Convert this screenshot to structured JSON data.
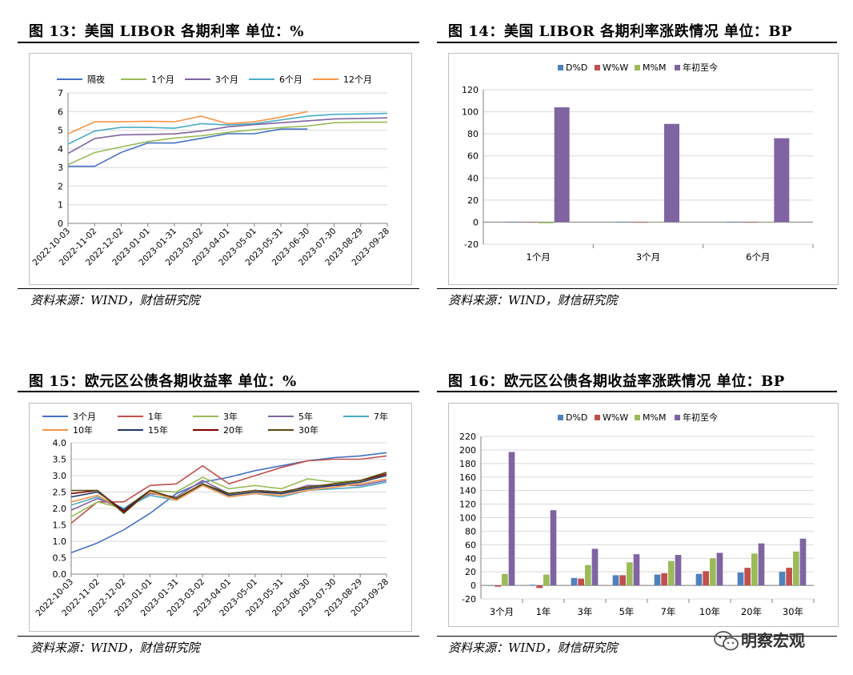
{
  "colors": {
    "s1": "#4472c4",
    "s2": "#c0504d",
    "s3": "#9bbb59",
    "s4": "#8064a2",
    "s5": "#4bacc6",
    "s6": "#f79646",
    "s7": "#1f3864",
    "s8": "#7f0000",
    "s9": "#5a4a0f",
    "bar_dd": "#4f81bd",
    "bar_ww": "#c0504d",
    "bar_mm": "#9bbb59",
    "bar_ytd": "#8064a2"
  },
  "panels": [
    {
      "title": "图 13：美国 LIBOR 各期利率  单位：%",
      "source": "资料来源：WIND，财信研究院"
    },
    {
      "title": "图 14：美国 LIBOR 各期利率涨跌情况  单位：BP",
      "source": "资料来源：WIND，财信研究院"
    },
    {
      "title": "图 15：欧元区公债各期收益率  单位：%",
      "source": "资料来源：WIND，财信研究院"
    },
    {
      "title": "图 16：欧元区公债各期收益率涨跌情况  单位：BP",
      "source": "资料来源：WIND，财信研究院"
    }
  ],
  "watermark": {
    "text": "明察宏观",
    "icon": "wechat-icon"
  },
  "chart_data": [
    {
      "type": "line",
      "dates": [
        "2022-10-03",
        "2022-11-02",
        "2022-12-02",
        "2023-01-01",
        "2023-01-31",
        "2023-03-02",
        "2023-04-01",
        "2023-05-01",
        "2023-05-31",
        "2023-06-30",
        "2023-07-30",
        "2023-08-29",
        "2023-09-28"
      ],
      "ylim": [
        0,
        7
      ],
      "yticks": [
        0,
        1,
        2,
        3,
        4,
        5,
        6,
        7
      ],
      "series": [
        {
          "name": "隔夜",
          "values": [
            3.06,
            3.06,
            3.81,
            4.31,
            4.31,
            4.56,
            4.81,
            4.81,
            5.06,
            5.06,
            null,
            null,
            null
          ]
        },
        {
          "name": "1个月",
          "values": [
            3.15,
            3.8,
            4.1,
            4.39,
            4.58,
            4.7,
            4.88,
            5.03,
            5.14,
            5.22,
            5.4,
            5.43,
            5.43
          ]
        },
        {
          "name": "3个月",
          "values": [
            3.75,
            4.55,
            4.75,
            4.77,
            4.8,
            4.95,
            5.18,
            5.3,
            5.4,
            5.5,
            5.6,
            5.63,
            5.66
          ]
        },
        {
          "name": "6个月",
          "values": [
            4.25,
            4.95,
            5.15,
            5.15,
            5.1,
            5.35,
            5.28,
            5.35,
            5.55,
            5.75,
            5.85,
            5.87,
            5.9
          ]
        },
        {
          "name": "12个月",
          "values": [
            4.8,
            5.45,
            5.45,
            5.48,
            5.45,
            5.75,
            5.35,
            5.45,
            5.7,
            6.0,
            null,
            null,
            null
          ]
        }
      ]
    },
    {
      "type": "bar",
      "categories": [
        "1个月",
        "3个月",
        "6个月"
      ],
      "ylim": [
        -20,
        120
      ],
      "yticks": [
        -20,
        0,
        20,
        40,
        60,
        80,
        100,
        120
      ],
      "series": [
        {
          "name": "D%D",
          "values": [
            0,
            0,
            0
          ]
        },
        {
          "name": "W%W",
          "values": [
            0,
            0,
            0
          ]
        },
        {
          "name": "M%M",
          "values": [
            -1,
            0,
            0
          ]
        },
        {
          "name": "年初至今",
          "values": [
            104,
            89,
            76
          ]
        }
      ]
    },
    {
      "type": "line",
      "dates": [
        "2022-10-03",
        "2022-11-02",
        "2022-12-02",
        "2023-01-01",
        "2023-01-31",
        "2023-03-02",
        "2023-04-01",
        "2023-05-01",
        "2023-05-31",
        "2023-06-30",
        "2023-07-30",
        "2023-08-29",
        "2023-09-28"
      ],
      "ylim": [
        0,
        4
      ],
      "yticks": [
        "0.0",
        "0.5",
        "1.0",
        "1.5",
        "2.0",
        "2.5",
        "3.0",
        "3.5",
        "4.0"
      ],
      "series": [
        {
          "name": "3个月",
          "values": [
            0.65,
            0.95,
            1.35,
            1.85,
            2.45,
            2.8,
            2.95,
            3.15,
            3.3,
            3.45,
            3.55,
            3.6,
            3.7
          ]
        },
        {
          "name": "1年",
          "values": [
            1.55,
            2.2,
            2.2,
            2.7,
            2.75,
            3.3,
            2.75,
            3.0,
            3.25,
            3.45,
            3.5,
            3.5,
            3.6
          ]
        },
        {
          "name": "3年",
          "values": [
            1.75,
            2.2,
            2.0,
            2.55,
            2.5,
            2.95,
            2.6,
            2.7,
            2.6,
            2.9,
            2.8,
            2.85,
            3.0
          ]
        },
        {
          "name": "5年",
          "values": [
            1.95,
            2.3,
            2.0,
            2.45,
            2.35,
            2.85,
            2.45,
            2.55,
            2.45,
            2.7,
            2.7,
            2.7,
            2.85
          ]
        },
        {
          "name": "7年",
          "values": [
            2.1,
            2.35,
            2.0,
            2.4,
            2.25,
            2.7,
            2.35,
            2.45,
            2.35,
            2.55,
            2.6,
            2.65,
            2.8
          ]
        },
        {
          "name": "10年",
          "values": [
            2.2,
            2.4,
            1.95,
            2.5,
            2.25,
            2.7,
            2.35,
            2.45,
            2.4,
            2.55,
            2.65,
            2.75,
            2.9
          ]
        },
        {
          "name": "15年",
          "values": [
            2.35,
            2.5,
            1.95,
            2.55,
            2.3,
            2.75,
            2.4,
            2.5,
            2.45,
            2.6,
            2.7,
            2.8,
            3.0
          ]
        },
        {
          "name": "20年",
          "values": [
            2.45,
            2.55,
            1.9,
            2.55,
            2.3,
            2.75,
            2.45,
            2.55,
            2.5,
            2.65,
            2.75,
            2.85,
            3.05
          ]
        },
        {
          "name": "30年",
          "values": [
            2.55,
            2.55,
            1.85,
            2.55,
            2.3,
            2.75,
            2.45,
            2.55,
            2.5,
            2.65,
            2.75,
            2.85,
            3.1
          ]
        }
      ]
    },
    {
      "type": "bar",
      "categories": [
        "3个月",
        "1年",
        "3年",
        "5年",
        "7年",
        "10年",
        "20年",
        "30年"
      ],
      "ylim": [
        -20,
        220
      ],
      "yticks": [
        -20,
        0,
        20,
        40,
        60,
        80,
        100,
        120,
        140,
        160,
        180,
        200,
        220
      ],
      "series": [
        {
          "name": "D%D",
          "values": [
            0,
            1,
            11,
            15,
            16,
            17,
            19,
            20
          ]
        },
        {
          "name": "W%W",
          "values": [
            -2,
            -4,
            10,
            15,
            18,
            21,
            26,
            26
          ]
        },
        {
          "name": "M%M",
          "values": [
            17,
            16,
            30,
            34,
            36,
            40,
            47,
            50
          ]
        },
        {
          "name": "年初至今",
          "values": [
            197,
            111,
            54,
            46,
            45,
            48,
            62,
            69
          ]
        }
      ]
    }
  ]
}
